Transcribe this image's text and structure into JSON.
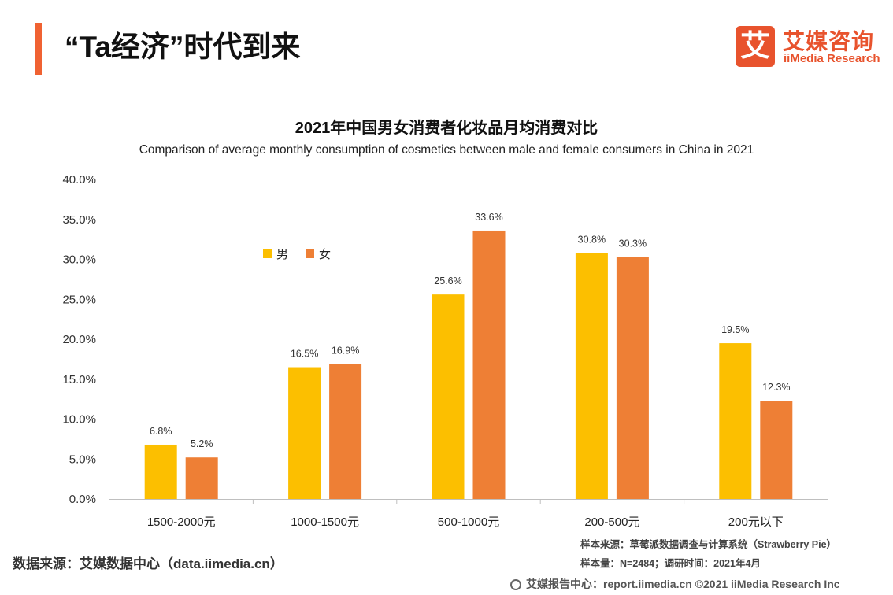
{
  "header": {
    "title": "“Ta经济”时代到来",
    "logo_mark": "艾",
    "logo_cn": "艾媒咨询",
    "logo_en": "iiMedia Research",
    "accent_color": "#f06232"
  },
  "chart_data": {
    "type": "bar",
    "title": "2021年中国男女消费者化妆品月均消费对比",
    "subtitle": "Comparison of average monthly consumption of cosmetics between male and female consumers in China in 2021",
    "categories": [
      "1500-2000元",
      "1000-1500元",
      "500-1000元",
      "200-500元",
      "200元以下"
    ],
    "series": [
      {
        "name": "男",
        "color": "#fcbf00",
        "values": [
          6.8,
          16.5,
          25.6,
          30.8,
          19.5
        ],
        "labels": [
          "6.8%",
          "16.5%",
          "25.6%",
          "30.8%",
          "19.5%"
        ]
      },
      {
        "name": "女",
        "color": "#ee7f35",
        "values": [
          5.2,
          16.9,
          33.6,
          30.3,
          12.3
        ],
        "labels": [
          "5.2%",
          "16.9%",
          "33.6%",
          "30.3%",
          "12.3%"
        ]
      }
    ],
    "ylim": [
      0,
      40
    ],
    "yticks": [
      "0.0%",
      "5.0%",
      "10.0%",
      "15.0%",
      "20.0%",
      "25.0%",
      "30.0%",
      "35.0%",
      "40.0%"
    ],
    "grid": false,
    "legend_position": "top-left"
  },
  "footer": {
    "source": "数据来源：艾媒数据中心（data.iimedia.cn）",
    "sample_source": "样本来源：草莓派数据调查与计算系统（Strawberry Pie）",
    "sample_size": "样本量：N=2484；调研时间：2021年4月",
    "copyright": "艾媒报告中心：report.iimedia.cn  ©2021  iiMedia Research  Inc"
  }
}
